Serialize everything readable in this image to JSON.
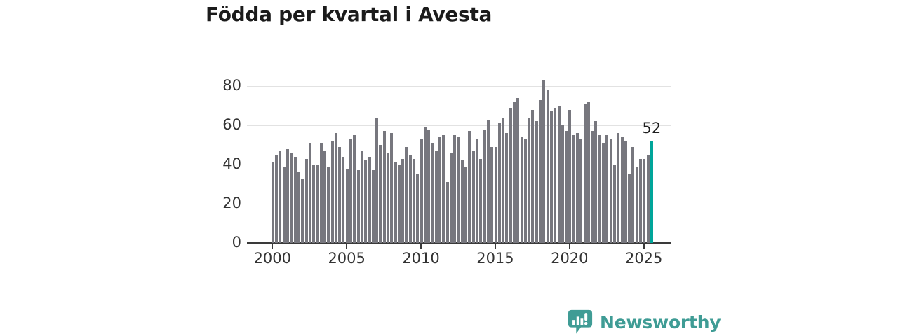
{
  "title": "Födda per kvartal i Avesta",
  "chart_data": {
    "type": "bar",
    "frequency": "quarterly",
    "x_start": "2000 Q1",
    "x_end": "2025 Q3",
    "series_by_year": [
      {
        "year": 2000,
        "quarterly": [
          41,
          45,
          47,
          39
        ]
      },
      {
        "year": 2001,
        "quarterly": [
          48,
          46,
          44,
          36
        ]
      },
      {
        "year": 2002,
        "quarterly": [
          33,
          43,
          51,
          40
        ]
      },
      {
        "year": 2003,
        "quarterly": [
          40,
          51,
          47,
          39
        ]
      },
      {
        "year": 2004,
        "quarterly": [
          52,
          56,
          49,
          44
        ]
      },
      {
        "year": 2005,
        "quarterly": [
          38,
          53,
          55,
          37
        ]
      },
      {
        "year": 2006,
        "quarterly": [
          47,
          42,
          44,
          37
        ]
      },
      {
        "year": 2007,
        "quarterly": [
          64,
          50,
          57,
          46
        ]
      },
      {
        "year": 2008,
        "quarterly": [
          56,
          41,
          40,
          43
        ]
      },
      {
        "year": 2009,
        "quarterly": [
          49,
          45,
          43,
          35
        ]
      },
      {
        "year": 2010,
        "quarterly": [
          53,
          59,
          58,
          51
        ]
      },
      {
        "year": 2011,
        "quarterly": [
          47,
          54,
          55,
          31
        ]
      },
      {
        "year": 2012,
        "quarterly": [
          46,
          55,
          54,
          42
        ]
      },
      {
        "year": 2013,
        "quarterly": [
          39,
          57,
          47,
          53
        ]
      },
      {
        "year": 2014,
        "quarterly": [
          43,
          58,
          63,
          49
        ]
      },
      {
        "year": 2015,
        "quarterly": [
          49,
          61,
          64,
          56
        ]
      },
      {
        "year": 2016,
        "quarterly": [
          69,
          72,
          74,
          54
        ]
      },
      {
        "year": 2017,
        "quarterly": [
          53,
          64,
          68,
          62
        ]
      },
      {
        "year": 2018,
        "quarterly": [
          73,
          83,
          78,
          67
        ]
      },
      {
        "year": 2019,
        "quarterly": [
          69,
          70,
          60,
          57
        ]
      },
      {
        "year": 2020,
        "quarterly": [
          68,
          55,
          56,
          53
        ]
      },
      {
        "year": 2021,
        "quarterly": [
          71,
          72,
          57,
          62
        ]
      },
      {
        "year": 2022,
        "quarterly": [
          55,
          51,
          55,
          53
        ]
      },
      {
        "year": 2023,
        "quarterly": [
          40,
          56,
          54,
          52
        ]
      },
      {
        "year": 2024,
        "quarterly": [
          35,
          49,
          39,
          43
        ]
      },
      {
        "year": 2025,
        "quarterly": [
          43,
          45,
          52
        ]
      }
    ],
    "highlight": {
      "quarter": "2025 Q3",
      "value": 52,
      "label": "52",
      "color": "#00a59a"
    },
    "bar_color": "#77777e",
    "yticks": [
      0,
      20,
      40,
      60,
      80
    ],
    "xticks": [
      "2000",
      "2005",
      "2010",
      "2015",
      "2020",
      "2025"
    ],
    "ylim": [
      0,
      85
    ],
    "grid": true,
    "legend": "none"
  },
  "branding": {
    "logo_text": "Newsworthy",
    "logo_color": "#3f9c95",
    "icon": "newsworthy-speech-bubble-bar-chart-icon"
  }
}
